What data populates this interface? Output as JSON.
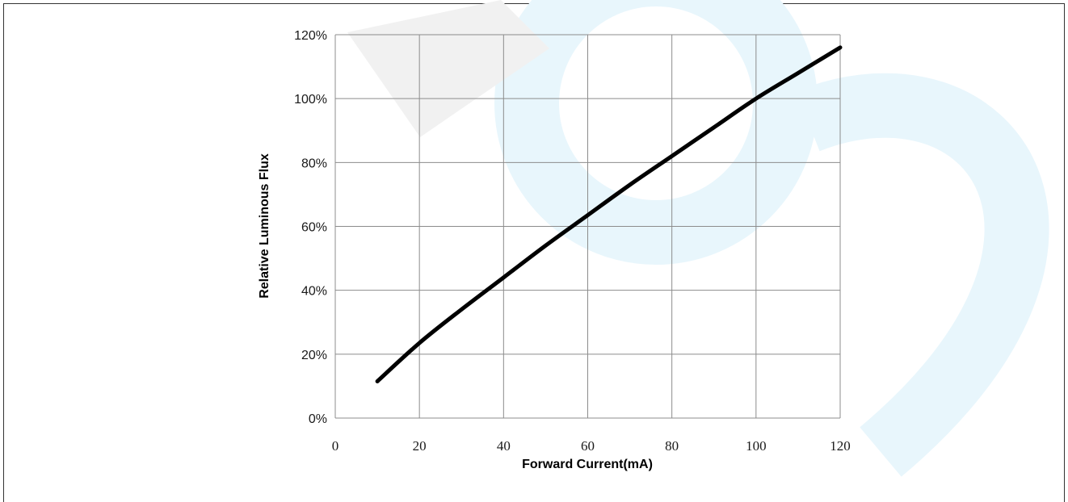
{
  "chart_data": {
    "type": "line",
    "title": "",
    "xlabel": "Forward Current(mA)",
    "ylabel": "Relative Luminous Flux",
    "xlim": [
      0,
      120
    ],
    "ylim": [
      0,
      120
    ],
    "x_ticks": [
      0,
      20,
      40,
      60,
      80,
      100,
      120
    ],
    "y_ticks": [
      0,
      20,
      40,
      60,
      80,
      100,
      120
    ],
    "x_tick_labels": [
      "0",
      "20",
      "40",
      "60",
      "80",
      "100",
      "120"
    ],
    "y_tick_labels": [
      "0%",
      "20%",
      "40%",
      "60%",
      "80%",
      "100%",
      "120%"
    ],
    "grid": true,
    "legend": "none",
    "series": [
      {
        "color": "#000000",
        "x": [
          10,
          20,
          30,
          40,
          50,
          60,
          70,
          80,
          90,
          100,
          110,
          120
        ],
        "y": [
          11.5,
          23.5,
          34,
          44,
          54,
          63.5,
          73,
          82,
          91,
          100,
          108,
          116
        ]
      }
    ]
  }
}
